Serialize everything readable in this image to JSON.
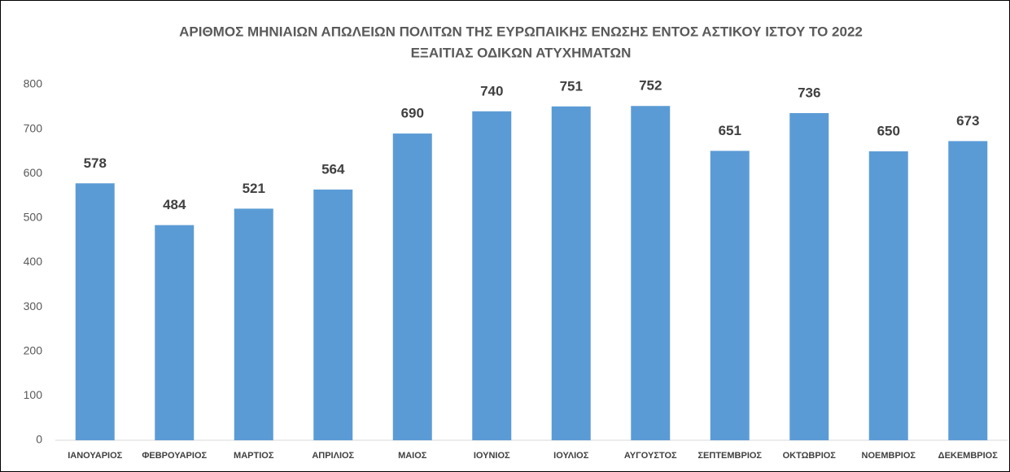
{
  "chart_data": {
    "type": "bar",
    "title": [
      "ΑΡΙΘΜΟΣ ΜΗΝΙΑΙΩΝ ΑΠΩΛΕΙΩΝ ΠΟΛΙΤΩΝ ΤΗΣ ΕΥΡΩΠΑΙΚΗΣ ΕΝΩΣΗΣ ΕΝΤΟΣ ΑΣΤΙΚΟΥ ΙΣΤΟΥ ΤΟ 2022",
      "ΕΞΑΙΤΙΑΣ ΟΔΙΚΩΝ ΑΤΥΧΗΜΑΤΩΝ"
    ],
    "categories": [
      "ΙΑΝΟΥΑΡΙΟΣ",
      "ΦΕΒΡΟΥΑΡΙΟΣ",
      "ΜΑΡΤΙΟΣ",
      "ΑΠΡΙΛΙΟΣ",
      "ΜΑΙΟΣ",
      "ΙΟΥΝΙΟΣ",
      "ΙΟΥΛΙΟΣ",
      "ΑΥΓΟΥΣΤΟΣ",
      "ΣΕΠΤΕΜΒΡΙΟΣ",
      "ΟΚΤΩΒΡΙΟΣ",
      "ΝΟΕΜΒΡΙΟΣ",
      "ΔΕΚΕΜΒΡΙΟΣ"
    ],
    "values": [
      578,
      484,
      521,
      564,
      690,
      740,
      751,
      752,
      651,
      736,
      650,
      673
    ],
    "color": "#5b9bd5",
    "ylim": [
      0,
      800
    ],
    "yticks": [
      0,
      100,
      200,
      300,
      400,
      500,
      600,
      700,
      800
    ],
    "grid": false
  }
}
